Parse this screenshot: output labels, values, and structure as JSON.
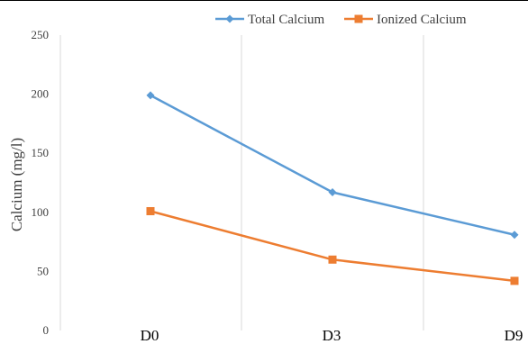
{
  "chart_data": {
    "type": "line",
    "categories": [
      "D0",
      "D3",
      "D9"
    ],
    "series": [
      {
        "name": "Total Calcium",
        "values": [
          199,
          117,
          81
        ],
        "color": "#5B9BD5",
        "marker": "diamond"
      },
      {
        "name": "Ionized Calcium",
        "values": [
          101,
          60,
          42
        ],
        "color": "#ED7D31",
        "marker": "square"
      }
    ],
    "ylabel": "Calcium (mg/l)",
    "ylim": [
      0,
      250
    ],
    "yticks": [
      0,
      50,
      100,
      150,
      200,
      250
    ],
    "legend": "top-right",
    "grid": "vertical"
  }
}
